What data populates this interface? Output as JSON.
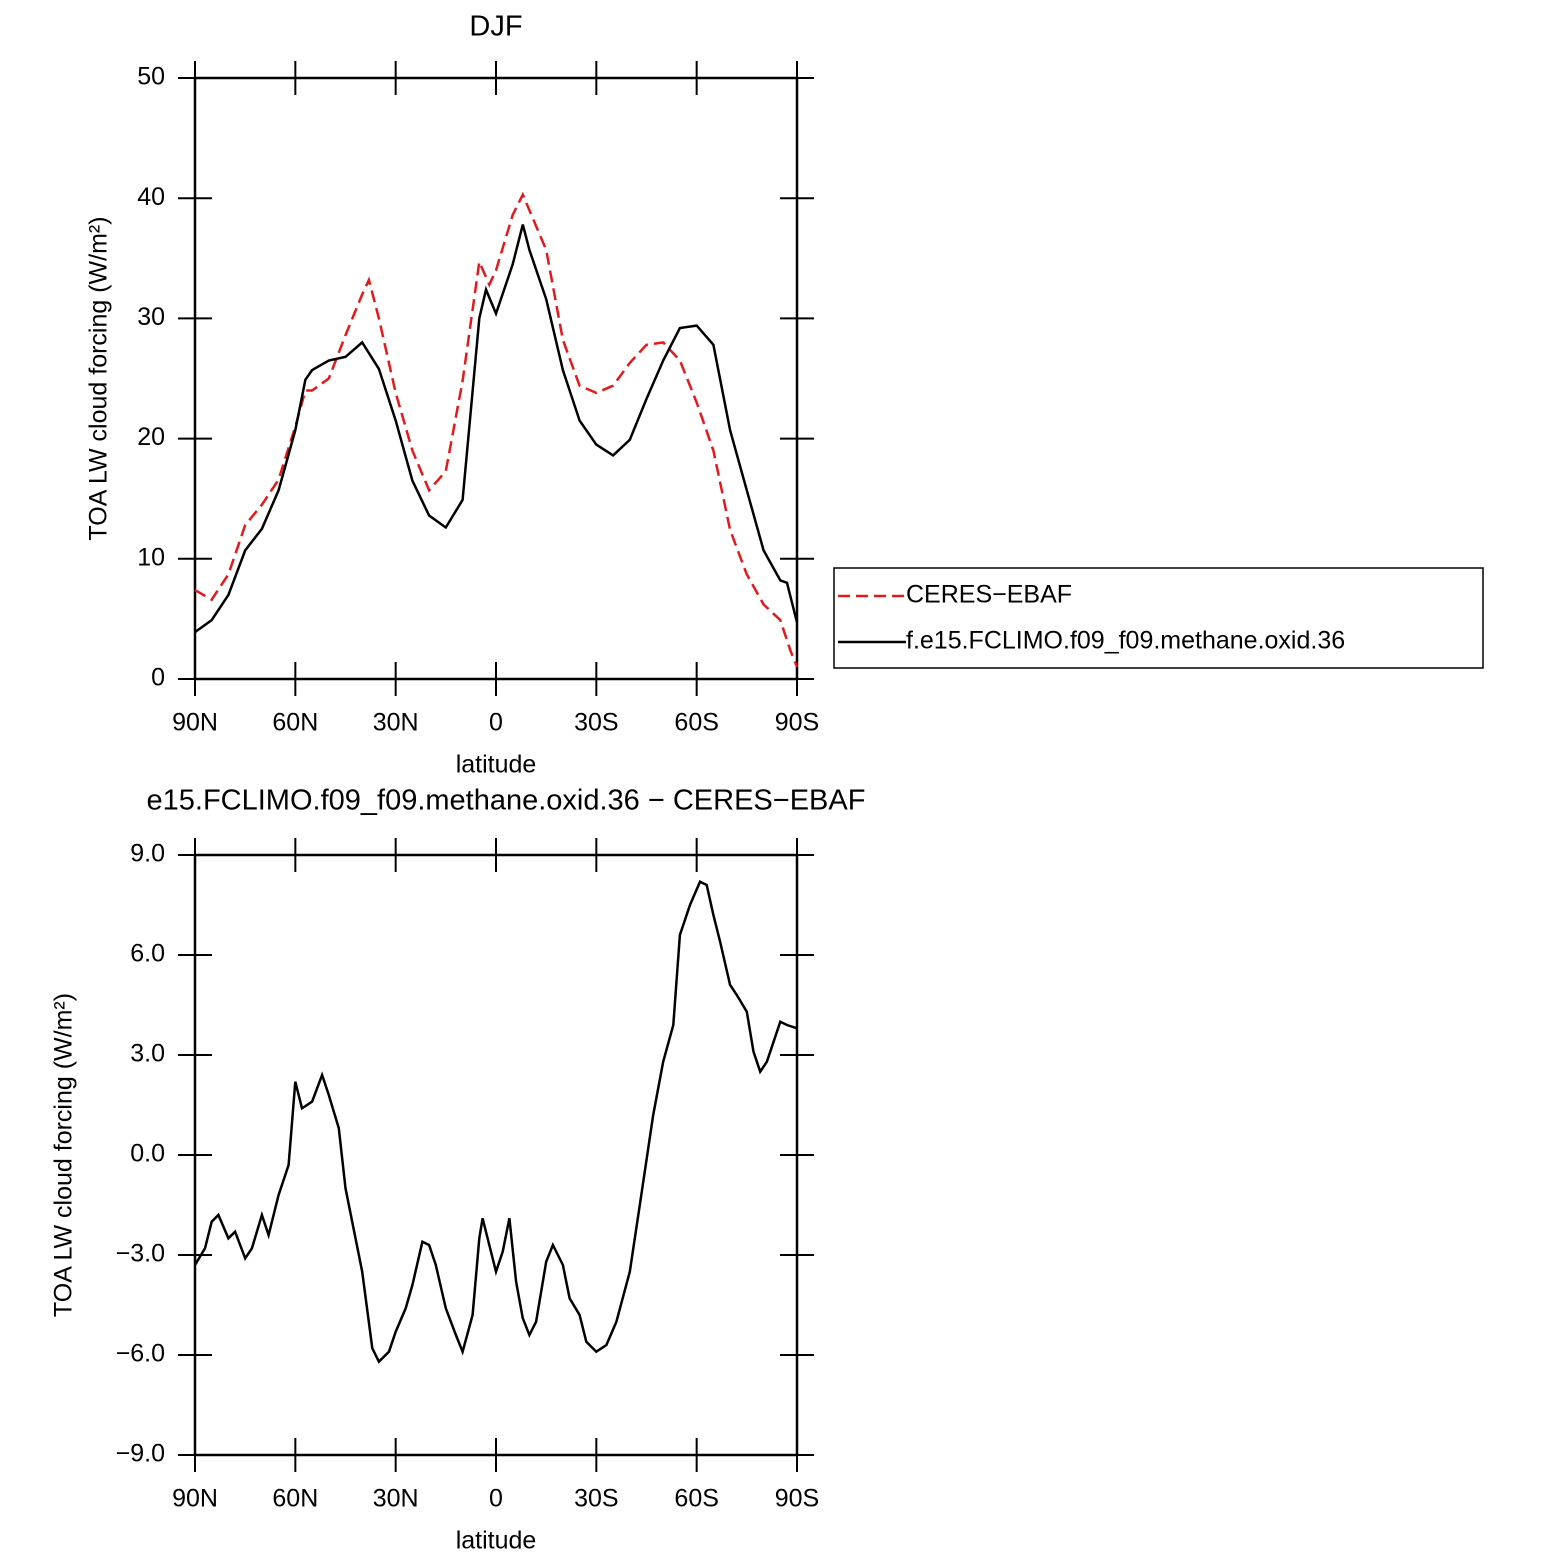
{
  "chart_data": [
    {
      "type": "line",
      "title": "DJF",
      "xlabel": "latitude",
      "ylabel": "TOA LW cloud forcing (W/m²)",
      "xlim": [
        90,
        -90
      ],
      "xticks": [
        {
          "value": 90,
          "label": "90N"
        },
        {
          "value": 60,
          "label": "60N"
        },
        {
          "value": 30,
          "label": "30N"
        },
        0,
        {
          "value": -30,
          "label": "30S"
        },
        {
          "value": -60,
          "label": "60S"
        },
        {
          "value": -90,
          "label": "90S"
        }
      ],
      "ylim": [
        0,
        50
      ],
      "yticks": [
        0,
        10,
        20,
        30,
        40,
        50
      ],
      "legend": "right",
      "series": [
        {
          "name": "CERES−EBAF",
          "color": "#e31a1c",
          "style": "dashed",
          "x": [
            90,
            85,
            80,
            75,
            70,
            65,
            60,
            57,
            55,
            50,
            45,
            40,
            38,
            35,
            30,
            25,
            20,
            15,
            10,
            5,
            2,
            0,
            -5,
            -8,
            -10,
            -15,
            -20,
            -25,
            -30,
            -35,
            -40,
            -45,
            -50,
            -55,
            -60,
            -65,
            -70,
            -75,
            -80,
            -85,
            -88,
            -90
          ],
          "values": [
            7.4,
            6.6,
            8.7,
            12.8,
            14.5,
            16.6,
            21,
            24,
            24,
            25,
            28.6,
            32,
            33.2,
            30,
            23.8,
            19,
            15.7,
            17.3,
            24.8,
            34.7,
            32.8,
            34,
            38.6,
            40.3,
            39,
            35.7,
            28.2,
            24.4,
            23.8,
            24.4,
            26.3,
            27.8,
            28,
            26.5,
            23,
            19,
            12.4,
            8.7,
            6.2,
            4.9,
            2.4,
            1
          ]
        },
        {
          "name": "f.e15.FCLIMO.f09_f09.methane.oxid.36",
          "color": "#000000",
          "style": "solid",
          "x": [
            90,
            85,
            80,
            75,
            70,
            65,
            60,
            57,
            55,
            50,
            45,
            40,
            35,
            30,
            25,
            20,
            15,
            10,
            5,
            3,
            0,
            -5,
            -8,
            -10,
            -15,
            -20,
            -25,
            -30,
            -35,
            -40,
            -45,
            -50,
            -55,
            -60,
            -65,
            -70,
            -75,
            -80,
            -85,
            -87,
            -90
          ],
          "values": [
            3.9,
            4.9,
            7,
            10.7,
            12.5,
            15.7,
            20.7,
            24.9,
            25.7,
            26.5,
            26.8,
            28,
            25.8,
            21.5,
            16.5,
            13.6,
            12.6,
            14.9,
            30,
            32.4,
            30.4,
            34.5,
            37.8,
            35.7,
            31.6,
            25.7,
            21.5,
            19.5,
            18.6,
            19.9,
            23.3,
            26.5,
            29.2,
            29.4,
            27.8,
            20.7,
            15.7,
            10.7,
            8.2,
            8,
            4.7
          ]
        }
      ]
    },
    {
      "type": "line",
      "title": "e15.FCLIMO.f09_f09.methane.oxid.36 − CERES−EBAF",
      "xlabel": "latitude",
      "ylabel": "TOA LW cloud forcing (W/m²)",
      "xlim": [
        90,
        -90
      ],
      "xticks": [
        {
          "value": 90,
          "label": "90N"
        },
        {
          "value": 60,
          "label": "60N"
        },
        {
          "value": 30,
          "label": "30N"
        },
        0,
        {
          "value": -30,
          "label": "30S"
        },
        {
          "value": -60,
          "label": "60S"
        },
        {
          "value": -90,
          "label": "90S"
        }
      ],
      "ylim": [
        -9,
        9
      ],
      "yticks": [
        {
          "value": -9,
          "label": "−9.0"
        },
        {
          "value": -6,
          "label": "−6.0"
        },
        {
          "value": -3,
          "label": "−3.0"
        },
        {
          "value": 0,
          "label": "0.0"
        },
        {
          "value": 3,
          "label": "3.0"
        },
        {
          "value": 6,
          "label": "6.0"
        },
        {
          "value": 9,
          "label": "9.0"
        }
      ],
      "series": [
        {
          "color": "#000000",
          "style": "solid",
          "x": [
            90,
            87,
            85,
            83,
            80,
            78,
            75,
            73,
            70,
            68,
            65,
            62,
            60,
            58,
            55,
            52,
            50,
            47,
            45,
            40,
            37,
            35,
            32,
            30,
            27,
            25,
            22,
            20,
            18,
            15,
            12,
            10,
            7,
            5,
            4,
            2,
            0,
            -2,
            -4,
            -6,
            -8,
            -10,
            -12,
            -15,
            -17,
            -20,
            -22,
            -25,
            -27,
            -30,
            -33,
            -36,
            -40,
            -43,
            -47,
            -50,
            -53,
            -55,
            -58,
            -61,
            -63,
            -65,
            -67,
            -70,
            -72,
            -75,
            -77,
            -79,
            -81,
            -83,
            -85,
            -87,
            -90
          ],
          "values": [
            -3.3,
            -2.8,
            -2.0,
            -1.8,
            -2.5,
            -2.3,
            -3.1,
            -2.8,
            -1.8,
            -2.4,
            -1.2,
            -0.3,
            2.2,
            1.4,
            1.6,
            2.4,
            1.8,
            0.8,
            -1.0,
            -3.5,
            -5.8,
            -6.2,
            -5.9,
            -5.3,
            -4.6,
            -3.9,
            -2.6,
            -2.7,
            -3.3,
            -4.6,
            -5.4,
            -5.9,
            -4.8,
            -2.5,
            -1.9,
            -2.7,
            -3.5,
            -2.9,
            -1.9,
            -3.8,
            -4.9,
            -5.4,
            -5.0,
            -3.2,
            -2.7,
            -3.3,
            -4.3,
            -4.8,
            -5.6,
            -5.9,
            -5.7,
            -5.0,
            -3.5,
            -1.5,
            1.2,
            2.8,
            3.9,
            6.6,
            7.5,
            8.2,
            8.1,
            7.2,
            6.4,
            5.1,
            4.8,
            4.3,
            3.1,
            2.5,
            2.8,
            3.4,
            4.0,
            3.9,
            3.8
          ]
        }
      ]
    }
  ]
}
